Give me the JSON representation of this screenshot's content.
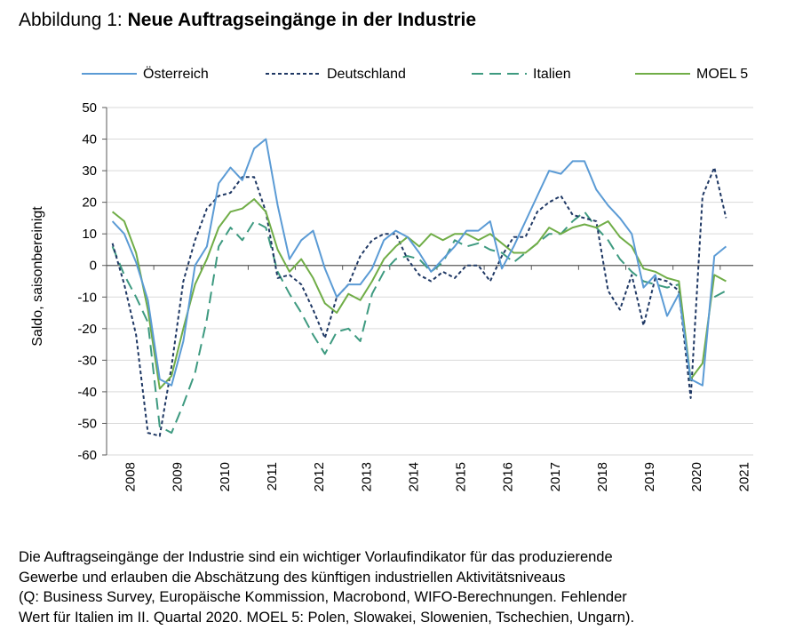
{
  "figure": {
    "title_prefix": "Abbildung 1:",
    "title_bold": "Neue Auftragseingänge in der Industrie",
    "caption_lines": [
      "Die Auftragseingänge der Industrie sind ein wichtiger Vorlaufindikator für das produzierende",
      "Gewerbe und erlauben die Abschätzung des künftigen industriellen Aktivitätsniveaus",
      "(Q: Business Survey, Europäische Kommission, Macrobond, WIFO-Berechnungen. Fehlender",
      "Wert für Italien im II. Quartal 2020. MOEL 5: Polen, Slowakei, Slowenien, Tschechien, Ungarn)."
    ]
  },
  "chart_data": {
    "type": "line",
    "title": "",
    "xlabel": "",
    "ylabel": "Saldo, saisonbereinigt",
    "ylim": [
      -60,
      50
    ],
    "yticks": [
      50,
      40,
      30,
      20,
      10,
      0,
      -10,
      -20,
      -30,
      -40,
      -50,
      -60
    ],
    "xlim": [
      2008,
      2021.7
    ],
    "xticks": [
      "2008",
      "2009",
      "2010",
      "2011",
      "2012",
      "2013",
      "2014",
      "2015",
      "2016",
      "2017",
      "2018",
      "2019",
      "2020",
      "2021"
    ],
    "x_unit": "quarter",
    "x": [
      "2008 Q1",
      "2008 Q2",
      "2008 Q3",
      "2008 Q4",
      "2009 Q1",
      "2009 Q2",
      "2009 Q3",
      "2009 Q4",
      "2010 Q1",
      "2010 Q2",
      "2010 Q3",
      "2010 Q4",
      "2011 Q1",
      "2011 Q2",
      "2011 Q3",
      "2011 Q4",
      "2012 Q1",
      "2012 Q2",
      "2012 Q3",
      "2012 Q4",
      "2013 Q1",
      "2013 Q2",
      "2013 Q3",
      "2013 Q4",
      "2014 Q1",
      "2014 Q2",
      "2014 Q3",
      "2014 Q4",
      "2015 Q1",
      "2015 Q2",
      "2015 Q3",
      "2015 Q4",
      "2016 Q1",
      "2016 Q2",
      "2016 Q3",
      "2016 Q4",
      "2017 Q1",
      "2017 Q2",
      "2017 Q3",
      "2017 Q4",
      "2018 Q1",
      "2018 Q2",
      "2018 Q3",
      "2018 Q4",
      "2019 Q1",
      "2019 Q2",
      "2019 Q3",
      "2019 Q4",
      "2020 Q1",
      "2020 Q2",
      "2020 Q3",
      "2020 Q4",
      "2021 Q1"
    ],
    "grid": "horizontal",
    "legend_position": "top",
    "zero_line": true,
    "series": [
      {
        "name": "Österreich",
        "color": "#5B9BD5",
        "dash": "solid",
        "values": [
          14.0,
          10.0,
          1.0,
          -11.0,
          -36.0,
          -38.0,
          -24.0,
          0.0,
          6.0,
          26.0,
          31.0,
          27.0,
          37.0,
          40.0,
          19.0,
          2.0,
          8.0,
          11.0,
          -1.0,
          -10.0,
          -6.0,
          -6.0,
          -1.0,
          8.0,
          11.0,
          9.0,
          4.0,
          -2.0,
          2.0,
          6.0,
          11.0,
          11.0,
          14.0,
          -1.0,
          6.0,
          14.0,
          22.0,
          30.0,
          29.0,
          33.0,
          33.0,
          24.0,
          19.0,
          15.0,
          10.0,
          -7.0,
          -3.0,
          -16.0,
          -9.0,
          -36.0,
          -38.0,
          3.0,
          6.0
        ]
      },
      {
        "name": "Deutschland",
        "color": "#1F3864",
        "dash": "4,3",
        "values": [
          7.0,
          -6.0,
          -22.0,
          -53.0,
          -54.0,
          -32.0,
          -5.0,
          8.0,
          18.0,
          22.0,
          23.0,
          28.0,
          28.0,
          17.0,
          -4.0,
          -3.0,
          -6.0,
          -14.0,
          -23.0,
          -10.0,
          -6.0,
          3.0,
          8.0,
          10.0,
          10.0,
          2.0,
          -3.0,
          -5.0,
          -2.0,
          -4.0,
          0.0,
          0.0,
          -5.0,
          3.0,
          9.0,
          9.0,
          17.0,
          20.0,
          22.0,
          16.0,
          15.0,
          14.0,
          -8.0,
          -14.0,
          -3.0,
          -19.0,
          -4.0,
          -5.0,
          -8.0,
          -42.0,
          22.0,
          31.0,
          15.0
        ]
      },
      {
        "name": "Italien",
        "color": "#3E9A80",
        "dash": "13,7",
        "values": [
          6.0,
          -3.0,
          -10.0,
          -18.0,
          -51.0,
          -53.0,
          -44.0,
          -34.0,
          -17.0,
          6.0,
          12.0,
          8.0,
          14.0,
          12.0,
          -2.0,
          -9.0,
          -15.0,
          -22.0,
          -28.0,
          -21.0,
          -20.0,
          -24.0,
          -9.0,
          -2.0,
          2.0,
          3.0,
          2.0,
          -2.0,
          1.0,
          8.0,
          6.0,
          7.0,
          5.0,
          4.0,
          1.0,
          4.0,
          7.0,
          10.0,
          10.0,
          14.0,
          17.0,
          12.0,
          8.0,
          2.0,
          -2.0,
          -5.0,
          -6.0,
          -7.0,
          -6.0,
          -37.0,
          null,
          -10.0,
          -8.0
        ]
      },
      {
        "name": "MOEL 5",
        "color": "#70AD47",
        "dash": "solid",
        "values": [
          17.0,
          14.0,
          4.0,
          -14.0,
          -39.0,
          -35.0,
          -20.0,
          -6.0,
          2.0,
          12.0,
          17.0,
          18.0,
          21.0,
          17.0,
          5.0,
          -2.0,
          2.0,
          -4.0,
          -12.0,
          -15.0,
          -9.0,
          -11.0,
          -5.0,
          2.0,
          6.0,
          9.0,
          6.0,
          10.0,
          8.0,
          10.0,
          10.0,
          8.0,
          10.0,
          7.0,
          4.0,
          4.0,
          7.0,
          12.0,
          10.0,
          12.0,
          13.0,
          12.0,
          14.0,
          9.0,
          6.0,
          -1.0,
          -2.0,
          -4.0,
          -5.0,
          -36.0,
          -31.0,
          -3.0,
          -5.0
        ]
      }
    ]
  }
}
